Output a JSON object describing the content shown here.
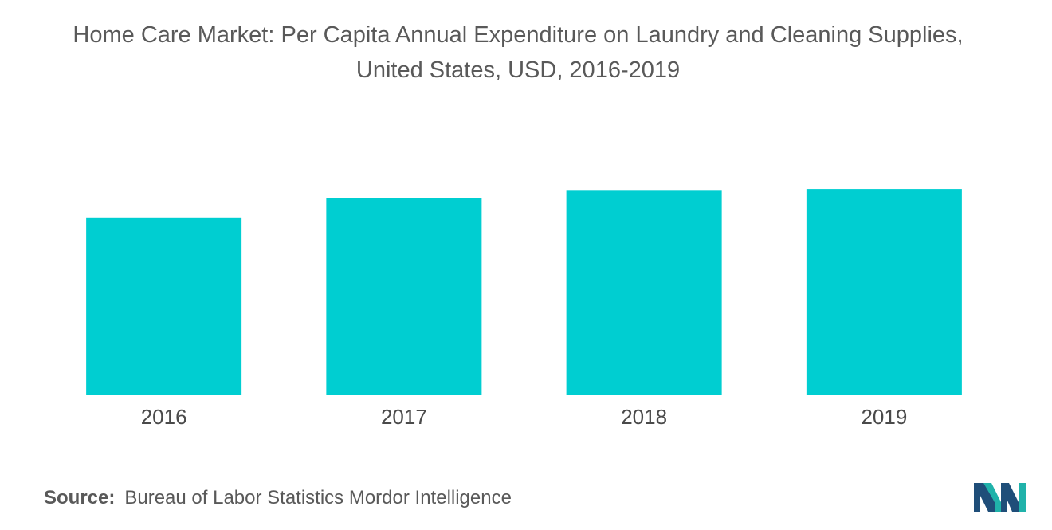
{
  "title_line1": "Home Care Market: Per Capita Annual Expenditure on Laundry and Cleaning Supplies,",
  "title_line2": "United States, USD, 2016-2019",
  "source_label": "Source:",
  "source_text": "Bureau of Labor Statistics Mordor Intelligence",
  "logo_icon": "mordor-intelligence-logo-icon",
  "colors": {
    "bar": "#00ced1",
    "logo_dark": "#1f4e79",
    "logo_teal": "#20b2aa"
  },
  "chart_data": {
    "type": "bar",
    "categories": [
      "2016",
      "2017",
      "2018",
      "2019"
    ],
    "values": [
      100,
      111,
      115,
      116
    ],
    "ylim": [
      0,
      125
    ],
    "grid": false,
    "legend": "none"
  }
}
